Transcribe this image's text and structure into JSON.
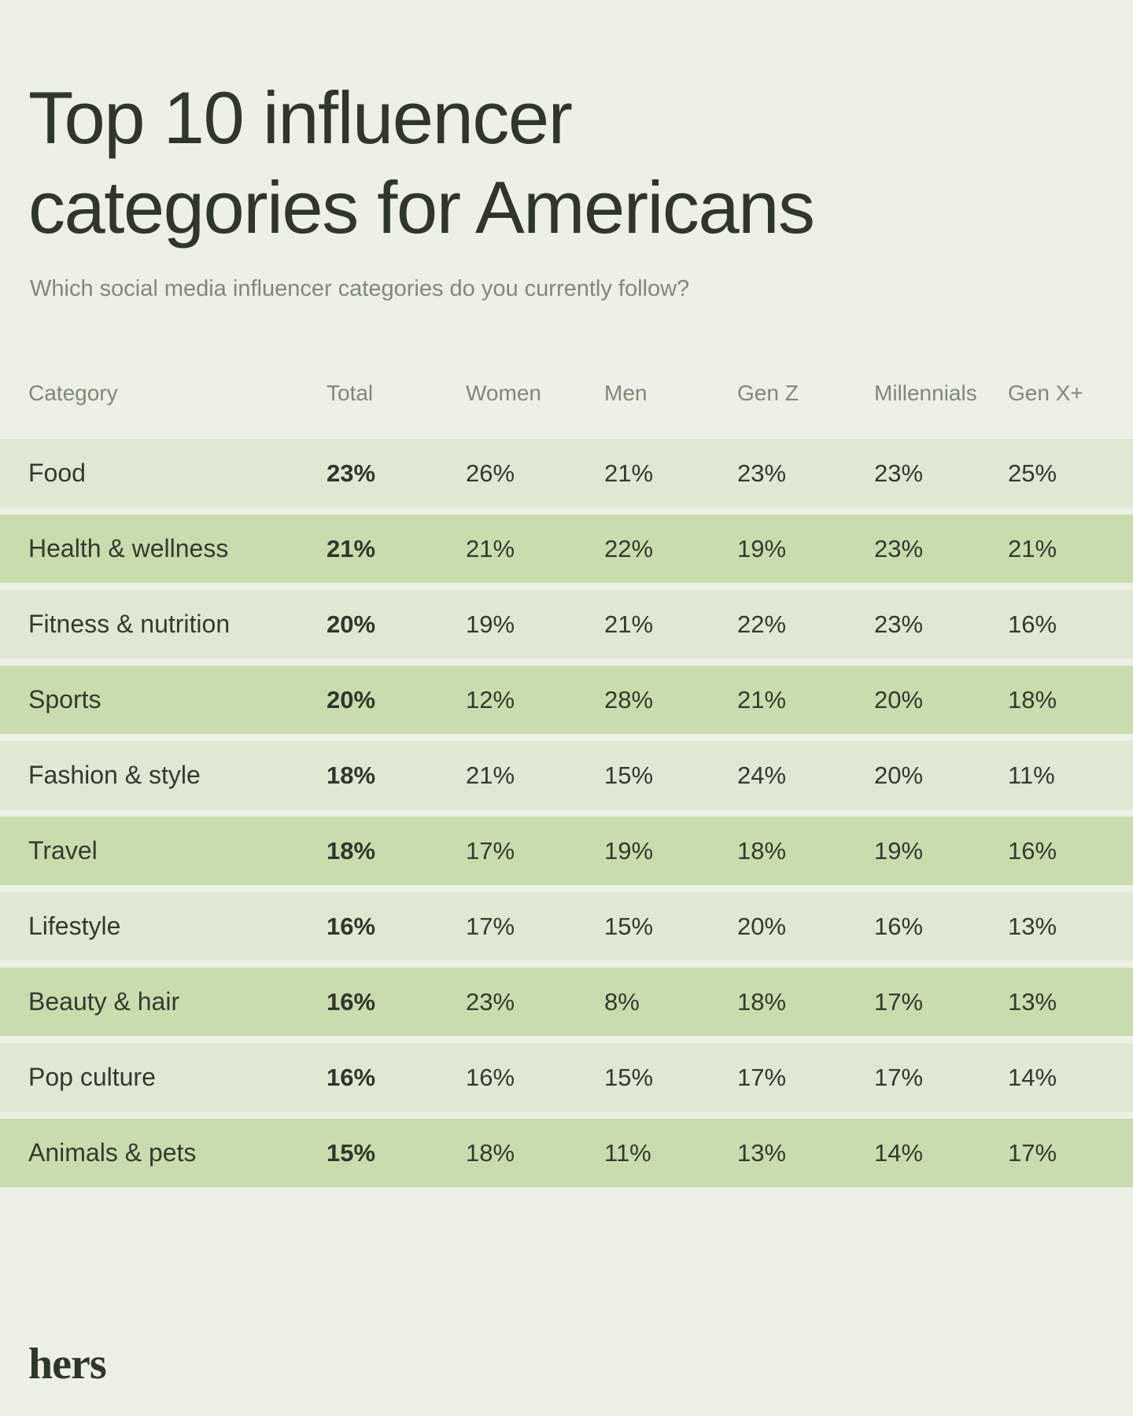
{
  "page": {
    "title_line1": "Top 10 influencer",
    "title_line2": "categories for Americans",
    "subtitle": "Which social media influencer categories do you currently follow?",
    "brand": "hers"
  },
  "colors": {
    "background": "#edf0e7",
    "row_light": "#dfe8d2",
    "row_dark": "#c9dcae",
    "text_dark": "#323a2e",
    "text_muted": "#7f8a76"
  },
  "chart_data": {
    "type": "table",
    "title": "Top 10 influencer categories for Americans",
    "subtitle": "Which social media influencer categories do you currently follow?",
    "columns": [
      "Category",
      "Total",
      "Women",
      "Men",
      "Gen Z",
      "Millennials",
      "Gen X+"
    ],
    "layout": {
      "striped": true,
      "bold_column": "Total",
      "legend": "none",
      "grid": "off"
    },
    "rows": [
      {
        "category": "Food",
        "values": [
          "23%",
          "26%",
          "21%",
          "23%",
          "23%",
          "25%"
        ]
      },
      {
        "category": "Health & wellness",
        "values": [
          "21%",
          "21%",
          "22%",
          "19%",
          "23%",
          "21%"
        ]
      },
      {
        "category": "Fitness & nutrition",
        "values": [
          "20%",
          "19%",
          "21%",
          "22%",
          "23%",
          "16%"
        ]
      },
      {
        "category": "Sports",
        "values": [
          "20%",
          "12%",
          "28%",
          "21%",
          "20%",
          "18%"
        ]
      },
      {
        "category": "Fashion & style",
        "values": [
          "18%",
          "21%",
          "15%",
          "24%",
          "20%",
          "11%"
        ]
      },
      {
        "category": "Travel",
        "values": [
          "18%",
          "17%",
          "19%",
          "18%",
          "19%",
          "16%"
        ]
      },
      {
        "category": "Lifestyle",
        "values": [
          "16%",
          "17%",
          "15%",
          "20%",
          "16%",
          "13%"
        ]
      },
      {
        "category": "Beauty & hair",
        "values": [
          "16%",
          "23%",
          "8%",
          "18%",
          "17%",
          "13%"
        ]
      },
      {
        "category": "Pop culture",
        "values": [
          "16%",
          "16%",
          "15%",
          "17%",
          "17%",
          "14%"
        ]
      },
      {
        "category": "Animals & pets",
        "values": [
          "15%",
          "18%",
          "11%",
          "13%",
          "14%",
          "17%"
        ]
      }
    ]
  }
}
